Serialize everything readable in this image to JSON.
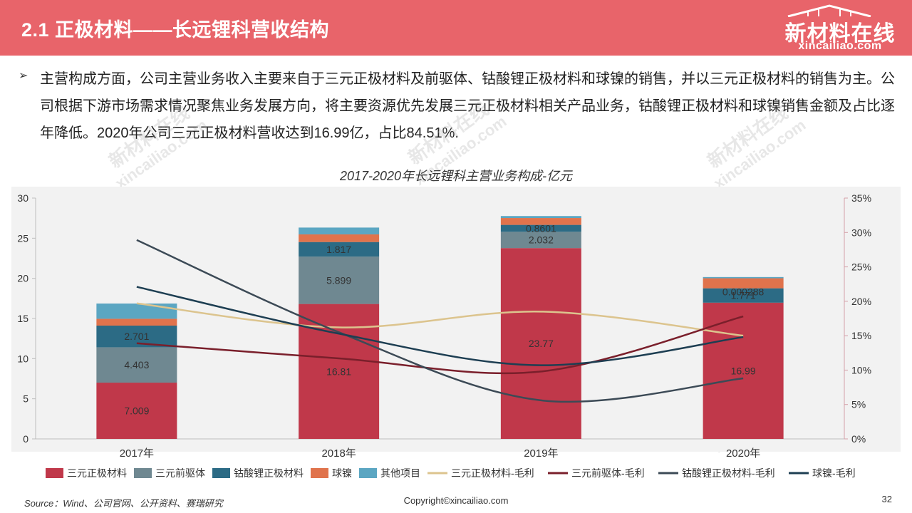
{
  "header": {
    "title": "2.1 正极材料——长远锂科营收结构",
    "logo_brand": "新材料在线",
    "logo_domain": "xincailiao.com"
  },
  "bullet": {
    "icon": "arrow-bullet-icon",
    "text": "主营构成方面，公司主营业务收入主要来自于三元正极材料及前驱体、钴酸锂正极材料和球镍的销售，并以三元正极材料的销售为主。公司根据下游市场需求情况聚焦业务发展方向，将主要资源优先发展三元正极材料相关产品业务，钴酸锂正极材料和球镍销售金额及占比逐年降低。2020年公司三元正极材料营收达到16.99亿，占比84.51%."
  },
  "watermark": {
    "brand": "新材料在线",
    "domain": "xincailiao.com"
  },
  "chart_data": {
    "type": "bar",
    "title": "2017-2020年长远锂科主营业务构成-亿元",
    "categories": [
      "2017年",
      "2018年",
      "2019年",
      "2020年"
    ],
    "ylim": [
      0,
      30
    ],
    "y_ticks": [
      "0",
      "5",
      "10",
      "15",
      "20",
      "25",
      "30"
    ],
    "y2lim": [
      0,
      35
    ],
    "y2_ticks": [
      "0%",
      "5%",
      "10%",
      "15%",
      "20%",
      "25%",
      "30%",
      "35%"
    ],
    "grid": false,
    "legend_position": "bottom",
    "bar_series": [
      {
        "name": "三元正极材料",
        "color": "#c0384a",
        "values": [
          7.009,
          16.81,
          23.77,
          16.99
        ],
        "labels": [
          "7.009",
          "16.81",
          "23.77",
          "16.99"
        ]
      },
      {
        "name": "三元前驱体",
        "color": "#6f8891",
        "values": [
          4.403,
          5.899,
          2.032,
          0.000288
        ],
        "labels": [
          "4.403",
          "5.899",
          "2.032",
          "0.000288"
        ]
      },
      {
        "name": "钴酸锂正极材料",
        "color": "#2c6b85",
        "values": [
          2.701,
          1.817,
          0.8601,
          1.771
        ],
        "labels": [
          "2.701",
          "1.817",
          "0.8601",
          "1.771"
        ]
      },
      {
        "name": "球镍",
        "color": "#e0734c",
        "values": [
          0.85,
          0.95,
          0.85,
          1.25
        ],
        "labels": [
          "",
          "",
          "",
          ""
        ]
      },
      {
        "name": "其他项目",
        "color": "#5ba6c2",
        "values": [
          1.9,
          0.85,
          0.25,
          0.15
        ],
        "labels": [
          "",
          "",
          "",
          ""
        ]
      }
    ],
    "line_series": [
      {
        "name": "三元正极材料-毛利",
        "color": "#dcc48e",
        "values": [
          19.7,
          16.2,
          18.5,
          15.0
        ]
      },
      {
        "name": "三元前驱体-毛利",
        "color": "#7a1f2b",
        "values": [
          13.9,
          11.7,
          9.8,
          17.8
        ]
      },
      {
        "name": "钴酸锂正极材料-毛利",
        "color": "#3c4a56",
        "values": [
          28.9,
          15.5,
          5.6,
          8.8
        ]
      },
      {
        "name": "球镍-毛利",
        "color": "#1d3e52",
        "values": [
          22.1,
          15.3,
          10.7,
          14.8
        ]
      }
    ]
  },
  "footer": {
    "source": "Source：Wind、公司官网、公开资料、赛瑞研究",
    "copyright": "Copyright©xincailiao.com",
    "page": "32"
  }
}
